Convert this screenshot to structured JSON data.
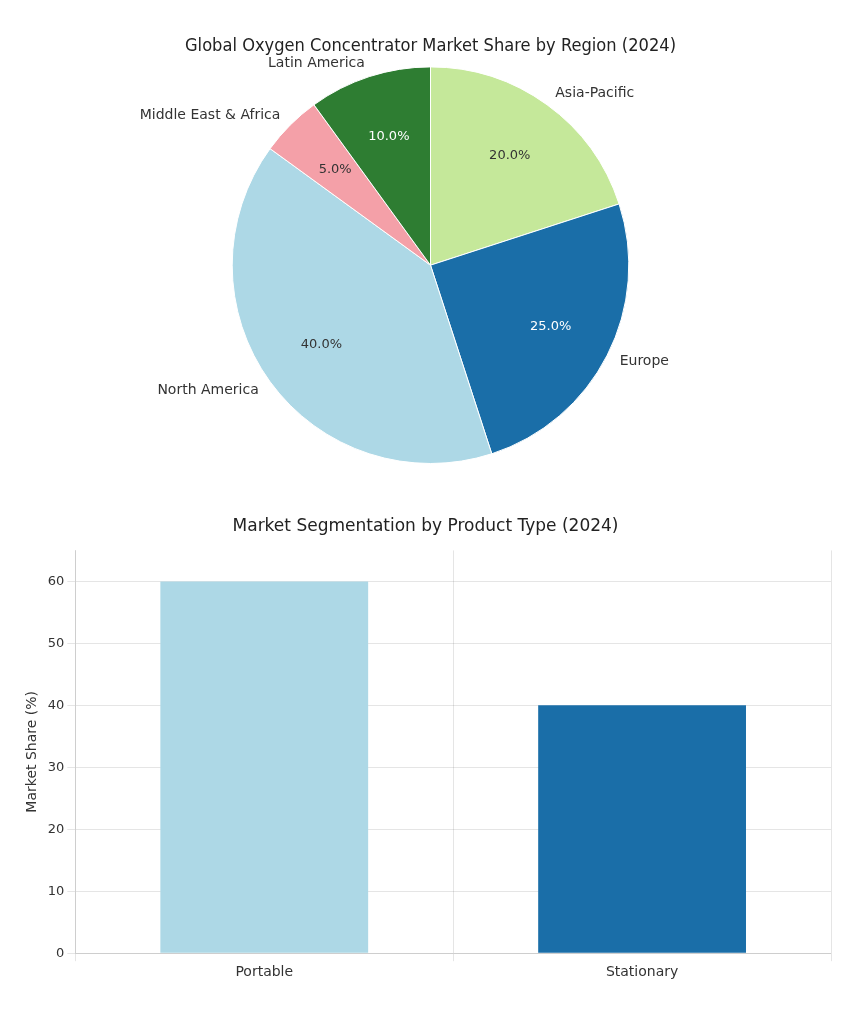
{
  "chart_data": [
    {
      "type": "pie",
      "title": "Global Oxygen Concentrator Market Share by Region (2024)",
      "categories": [
        "Asia-Pacific",
        "Europe",
        "North America",
        "Middle East & Africa",
        "Latin America"
      ],
      "values": [
        20.0,
        25.0,
        40.0,
        5.0,
        10.0
      ],
      "value_labels": [
        "20.0%",
        "25.0%",
        "40.0%",
        "5.0%",
        "10.0%"
      ],
      "colors": [
        "#c5e89a",
        "#1a6ea8",
        "#add8e6",
        "#f4a0a8",
        "#2e7d32"
      ],
      "data_labels": true
    },
    {
      "type": "bar",
      "title": "Market Segmentation by Product Type (2024)",
      "categories": [
        "Portable",
        "Stationary"
      ],
      "values": [
        60,
        40
      ],
      "colors": [
        "#add8e6",
        "#1a6ea8"
      ],
      "ylabel": "Market Share (%)",
      "ylim": [
        0,
        65
      ],
      "yticks": [
        0,
        10,
        20,
        30,
        40,
        50,
        60
      ],
      "grid": true
    }
  ]
}
